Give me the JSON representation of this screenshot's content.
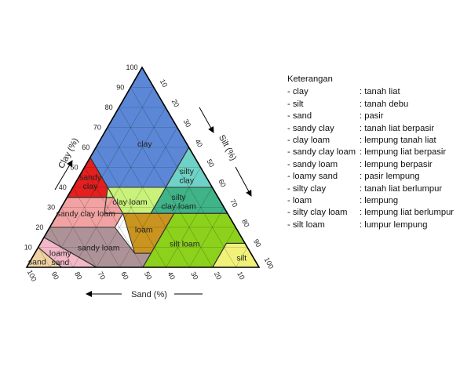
{
  "diagram": {
    "axes": {
      "clay": {
        "title": "Clay (%)",
        "ticks": [
          "10",
          "20",
          "30",
          "40",
          "50",
          "60",
          "70",
          "80",
          "90",
          "100"
        ]
      },
      "silt": {
        "title": "Silt (%)",
        "ticks": [
          "10",
          "20",
          "30",
          "40",
          "50",
          "60",
          "70",
          "80",
          "90",
          "100"
        ]
      },
      "sand": {
        "title": "Sand (%)",
        "ticks": [
          "100",
          "90",
          "80",
          "70",
          "60",
          "50",
          "40",
          "30",
          "20",
          "10"
        ]
      }
    },
    "zones": [
      {
        "id": "clay",
        "lines": [
          "clay"
        ],
        "color": "#5b87d6"
      },
      {
        "id": "sandy-clay",
        "lines": [
          "sandy",
          "clay"
        ],
        "color": "#e51e1e"
      },
      {
        "id": "silty-clay",
        "lines": [
          "silty",
          "clay"
        ],
        "color": "#6fd2c6"
      },
      {
        "id": "clay-loam",
        "lines": [
          "clay loam"
        ],
        "color": "#c9f27a"
      },
      {
        "id": "silty-clay-loam",
        "lines": [
          "silty",
          "clay loam"
        ],
        "color": "#40b488"
      },
      {
        "id": "sandy-clay-loam",
        "lines": [
          "sandy clay loam"
        ],
        "color": "#f2a2a2"
      },
      {
        "id": "loam",
        "lines": [
          "loam"
        ],
        "color": "#c9941f"
      },
      {
        "id": "sandy-loam",
        "lines": [
          "sandy loam"
        ],
        "color": "#ad9398"
      },
      {
        "id": "silt-loam",
        "lines": [
          "silt loam"
        ],
        "color": "#8cd11b"
      },
      {
        "id": "silt",
        "lines": [
          "silt"
        ],
        "color": "#f1f17a"
      },
      {
        "id": "loamy-sand",
        "lines": [
          "loamy",
          "sand"
        ],
        "color": "#f2b8c8"
      },
      {
        "id": "sand",
        "lines": [
          "sand"
        ],
        "color": "#f1d2a2"
      }
    ]
  },
  "legend": {
    "title": "Keterangan",
    "items": [
      {
        "term": "- clay",
        "meaning": ": tanah liat"
      },
      {
        "term": "- silt",
        "meaning": ": tanah debu"
      },
      {
        "term": "- sand",
        "meaning": ": pasir"
      },
      {
        "term": "- sandy clay",
        "meaning": ": tanah liat berpasir"
      },
      {
        "term": "- clay loam",
        "meaning": ": lempung tanah liat"
      },
      {
        "term": "- sandy clay loam",
        "meaning": ": lempung liat berpasir"
      },
      {
        "term": "- sandy loam",
        "meaning": ": lempung berpasir"
      },
      {
        "term": "- loamy sand",
        "meaning": ": pasir lempung"
      },
      {
        "term": "- silty clay",
        "meaning": ": tanah liat berlumpur"
      },
      {
        "term": "- loam",
        "meaning": ": lempung"
      },
      {
        "term": "- silty clay loam",
        "meaning": ": lempung liat berlumpur"
      },
      {
        "term": "- silt loam",
        "meaning": ": lumpur lempung"
      }
    ]
  }
}
